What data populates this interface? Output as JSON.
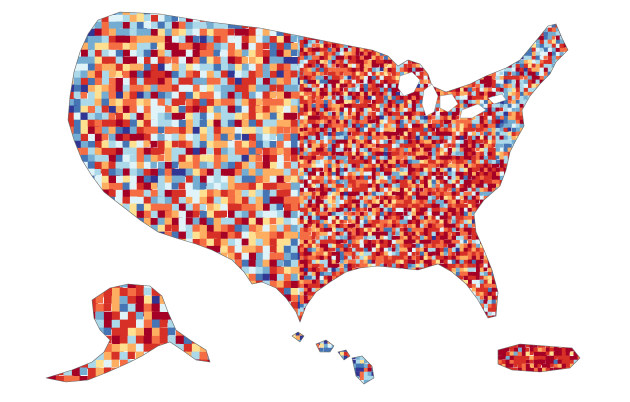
{
  "map": {
    "type": "choropleth",
    "regions": [
      {
        "id": "contiguous-us"
      },
      {
        "id": "alaska"
      },
      {
        "id": "hawaii"
      },
      {
        "id": "puerto-rico"
      }
    ],
    "palette": [
      "#a50026",
      "#d73027",
      "#f46d43",
      "#fdae61",
      "#fee090",
      "#e0f3f8",
      "#abd9e9",
      "#74add1",
      "#4575b4",
      "#313695"
    ],
    "outline_color": "#6b6b6b",
    "background": "#ffffff"
  }
}
